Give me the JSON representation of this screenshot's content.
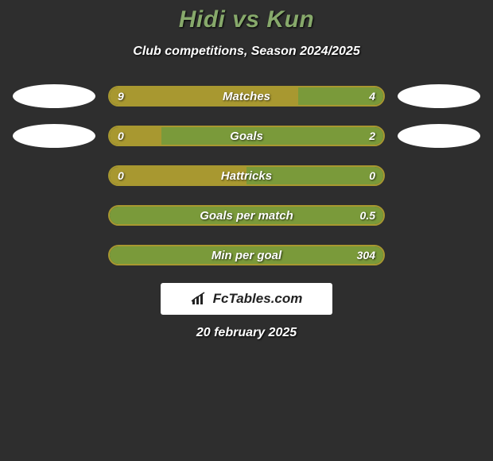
{
  "title": "Hidi vs Kun",
  "subtitle": "Club competitions, Season 2024/2025",
  "date": "20 february 2025",
  "watermark": "FcTables.com",
  "colors": {
    "background": "#2e2e2e",
    "title": "#87a96b",
    "left_fill": "#a89830",
    "right_fill": "#7a9a3a",
    "border": "#a89830",
    "ellipse": "#ffffff",
    "text": "#ffffff"
  },
  "bars": [
    {
      "label": "Matches",
      "left_value": "9",
      "right_value": "4",
      "left_pct": 69,
      "right_pct": 31,
      "show_left_ellipse": true,
      "show_right_ellipse": true
    },
    {
      "label": "Goals",
      "left_value": "0",
      "right_value": "2",
      "left_pct": 19,
      "right_pct": 81,
      "show_left_ellipse": true,
      "show_right_ellipse": true
    },
    {
      "label": "Hattricks",
      "left_value": "0",
      "right_value": "0",
      "left_pct": 50,
      "right_pct": 50,
      "show_left_ellipse": false,
      "show_right_ellipse": false
    },
    {
      "label": "Goals per match",
      "left_value": "",
      "right_value": "0.5",
      "left_pct": 0,
      "right_pct": 100,
      "show_left_ellipse": false,
      "show_right_ellipse": false
    },
    {
      "label": "Min per goal",
      "left_value": "",
      "right_value": "304",
      "left_pct": 0,
      "right_pct": 100,
      "show_left_ellipse": false,
      "show_right_ellipse": false
    }
  ]
}
